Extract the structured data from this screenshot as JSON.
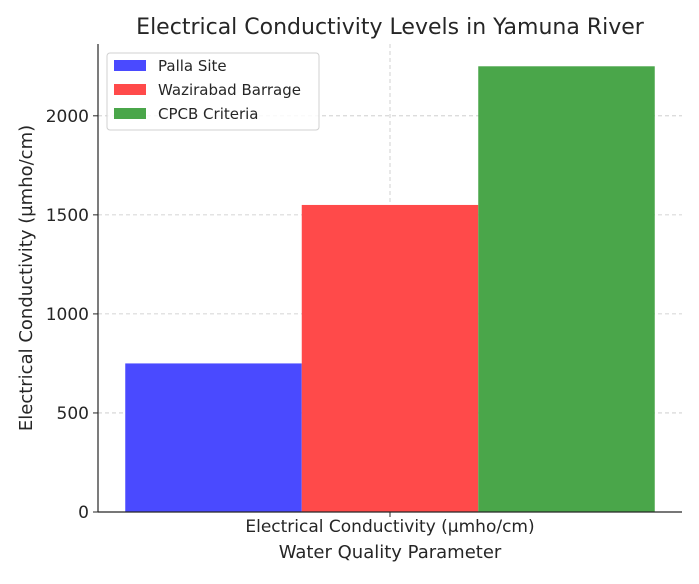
{
  "chart_data": {
    "type": "bar",
    "title": "Electrical Conductivity Levels in Yamuna River",
    "xlabel": "Water Quality Parameter",
    "ylabel": "Electrical Conductivity (µmho/cm)",
    "categories": [
      "Electrical Conductivity (µmho/cm)"
    ],
    "series": [
      {
        "name": "Palla Site",
        "values": [
          750
        ],
        "color": "#4a4aff"
      },
      {
        "name": "Wazirabad Barrage",
        "values": [
          1550
        ],
        "color": "#ff4a4a"
      },
      {
        "name": "CPCB Criteria",
        "values": [
          2250
        ],
        "color": "#4aa64a"
      }
    ],
    "yticks": [
      "0",
      "500",
      "1000",
      "1500",
      "2000"
    ],
    "ylim": [
      0,
      2362.5
    ],
    "grid": true,
    "legend_position": "top-left"
  }
}
